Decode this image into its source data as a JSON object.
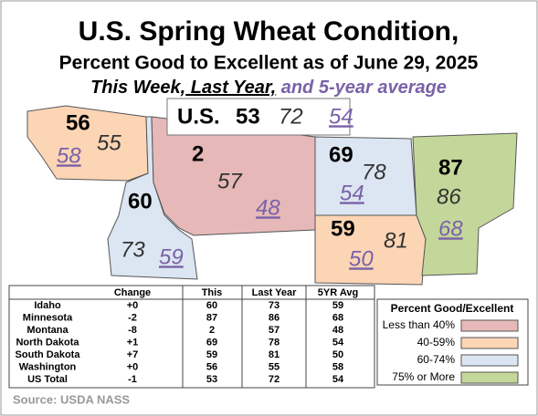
{
  "title": "U.S. Spring Wheat Condition,",
  "subtitle": "Percent Good to Excellent as of June 29, 2025",
  "key_line": {
    "this_week": "This Week,",
    "last_year": "Last Year,",
    "average": "and 5-year average"
  },
  "us": {
    "label": "U.S.",
    "this": "53",
    "last_year": "72",
    "average": "54"
  },
  "table": {
    "headers": [
      "Change",
      "This",
      "Last Year",
      "5YR Avg"
    ],
    "rows": [
      [
        "Idaho",
        "+0",
        "60",
        "73",
        "59"
      ],
      [
        "Minnesota",
        "-2",
        "87",
        "86",
        "68"
      ],
      [
        "Montana",
        "-8",
        "2",
        "57",
        "48"
      ],
      [
        "North Dakota",
        "+1",
        "69",
        "78",
        "54"
      ],
      [
        "South Dakota",
        "+7",
        "59",
        "81",
        "50"
      ],
      [
        "Washington",
        "+0",
        "56",
        "55",
        "58"
      ],
      [
        "US Total",
        "-1",
        "53",
        "72",
        "54"
      ]
    ]
  },
  "legend": {
    "title": "Percent Good/Excellent",
    "items": [
      {
        "label": "Less than 40%",
        "color": "#e6b9b8"
      },
      {
        "label": "40-59%",
        "color": "#fcd5b5"
      },
      {
        "label": "60-74%",
        "color": "#dce6f2"
      },
      {
        "label": "75% or More",
        "color": "#c4d79b"
      }
    ]
  },
  "source": "Source: USDA NASS"
}
